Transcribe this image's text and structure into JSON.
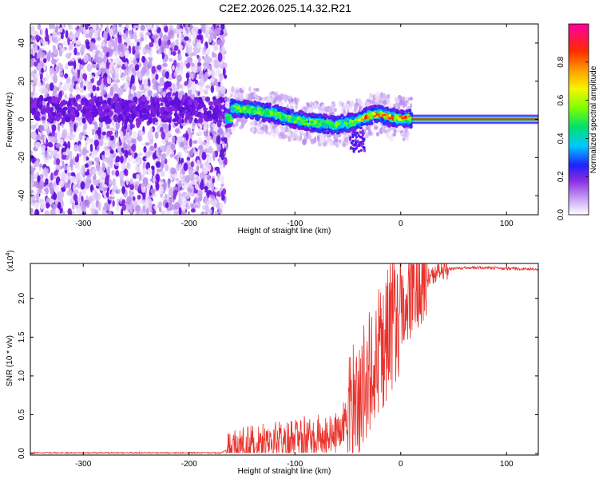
{
  "figure_title": "C2E2.2026.025.14.32.R21",
  "chart_data": [
    {
      "type": "heatmap",
      "ylabel": "Frequency (Hz)",
      "xlabel": "Height of straight line (km)",
      "xlim": [
        -350,
        130
      ],
      "ylim": [
        -50,
        50
      ],
      "xticks": [
        -300,
        -200,
        -100,
        0,
        100
      ],
      "xtick_labels": [
        "-300",
        "-200",
        "-100",
        "0",
        "100"
      ],
      "yticks": [
        -40,
        -20,
        0,
        20,
        40
      ],
      "ytick_labels": [
        "-40",
        "-20",
        "0",
        "20",
        "40"
      ],
      "noise_region_x": [
        -350,
        -165
      ],
      "transition_region_x": [
        -165,
        10
      ],
      "tone_region_x": [
        10,
        130
      ],
      "doppler_track": [
        {
          "x": -160,
          "f": 6
        },
        {
          "x": -140,
          "f": 5
        },
        {
          "x": -120,
          "f": 3
        },
        {
          "x": -100,
          "f": 0
        },
        {
          "x": -80,
          "f": -2
        },
        {
          "x": -60,
          "f": -3
        },
        {
          "x": -40,
          "f": -1
        },
        {
          "x": -30,
          "f": 2
        },
        {
          "x": -20,
          "f": 3
        },
        {
          "x": -10,
          "f": 1
        },
        {
          "x": 0,
          "f": 0.5
        },
        {
          "x": 10,
          "f": 0.5
        }
      ],
      "colorbar": {
        "label": "Normalized spectral amplitude",
        "range": [
          0,
          1
        ],
        "ticks": [
          0.0,
          0.2,
          0.4,
          0.6,
          0.8
        ],
        "tick_labels": [
          "0.0",
          "0.2",
          "0.4",
          "0.6",
          "0.8"
        ]
      }
    },
    {
      "type": "line",
      "ylabel": "SNR (10 * v/v)",
      "scale_label": "(x10",
      "scale_exponent": "4",
      "xlabel": "Height of straight line (km)",
      "xlim": [
        -350,
        130
      ],
      "ylim": [
        -0.02,
        2.45
      ],
      "xticks": [
        -300,
        -200,
        -100,
        0,
        100
      ],
      "xtick_labels": [
        "-300",
        "-200",
        "-100",
        "0",
        "100"
      ],
      "yticks": [
        0.0,
        0.5,
        1.0,
        1.5,
        2.0
      ],
      "ytick_labels": [
        "0.0",
        "0.5",
        "1.0",
        "1.5",
        "2.0"
      ],
      "line_color": "#e8322c",
      "series": [
        {
          "name": "SNR",
          "points": [
            {
              "x": -350,
              "y": 0.01
            },
            {
              "x": -170,
              "y": 0.01
            },
            {
              "x": -160,
              "y": 0.08
            },
            {
              "x": -150,
              "y": 0.12
            },
            {
              "x": -120,
              "y": 0.18
            },
            {
              "x": -100,
              "y": 0.25
            },
            {
              "x": -80,
              "y": 0.28
            },
            {
              "x": -60,
              "y": 0.3
            },
            {
              "x": -50,
              "y": 0.55
            },
            {
              "x": -40,
              "y": 0.9
            },
            {
              "x": -30,
              "y": 1.2
            },
            {
              "x": -20,
              "y": 1.5
            },
            {
              "x": -10,
              "y": 1.8
            },
            {
              "x": 0,
              "y": 2.0
            },
            {
              "x": 10,
              "y": 2.15
            },
            {
              "x": 20,
              "y": 2.25
            },
            {
              "x": 30,
              "y": 2.32
            },
            {
              "x": 40,
              "y": 2.38
            },
            {
              "x": 60,
              "y": 2.4
            },
            {
              "x": 80,
              "y": 2.4
            },
            {
              "x": 100,
              "y": 2.39
            },
            {
              "x": 130,
              "y": 2.38
            }
          ]
        }
      ]
    }
  ]
}
